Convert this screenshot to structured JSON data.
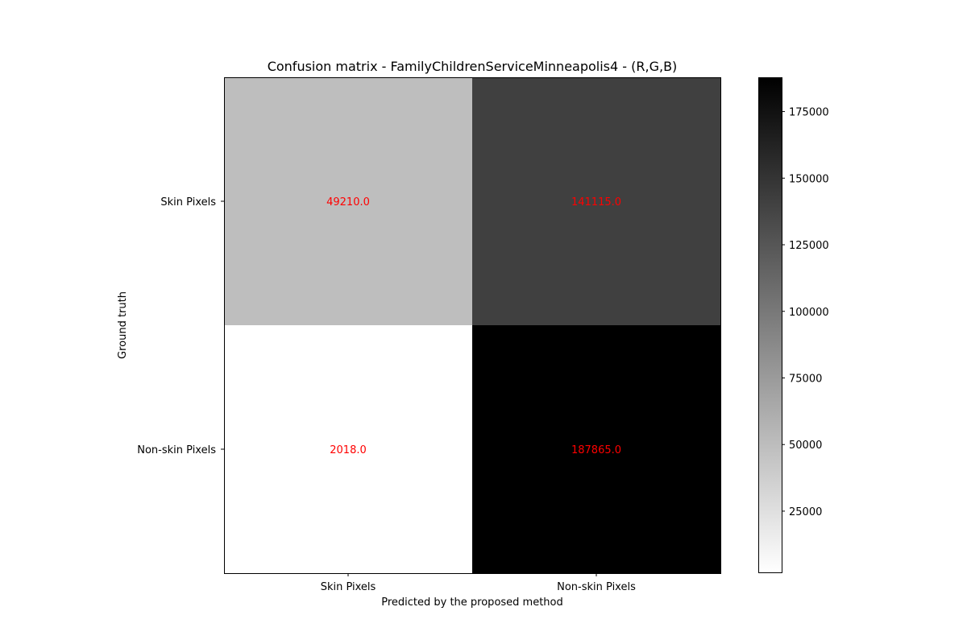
{
  "chart_data": {
    "type": "heatmap",
    "title": "Confusion matrix - FamilyChildrenServiceMinneapolis4 - (R,G,B)",
    "xlabel": "Predicted by the proposed method",
    "ylabel": "Ground truth",
    "x_categories": [
      "Skin Pixels",
      "Non-skin Pixels"
    ],
    "y_categories": [
      "Skin Pixels",
      "Non-skin Pixels"
    ],
    "values": [
      [
        49210.0,
        141115.0
      ],
      [
        2018.0,
        187865.0
      ]
    ],
    "cell_labels": [
      [
        "49210.0",
        "141115.0"
      ],
      [
        "2018.0",
        "187865.0"
      ]
    ],
    "colormap": "gray_r",
    "value_range": [
      2018.0,
      187865.0
    ],
    "colorbar_ticks": [
      25000,
      50000,
      75000,
      100000,
      125000,
      150000,
      175000
    ],
    "colorbar_tick_labels": [
      "25000",
      "50000",
      "75000",
      "100000",
      "125000",
      "150000",
      "175000"
    ],
    "annotation_color": "#ff0000"
  }
}
